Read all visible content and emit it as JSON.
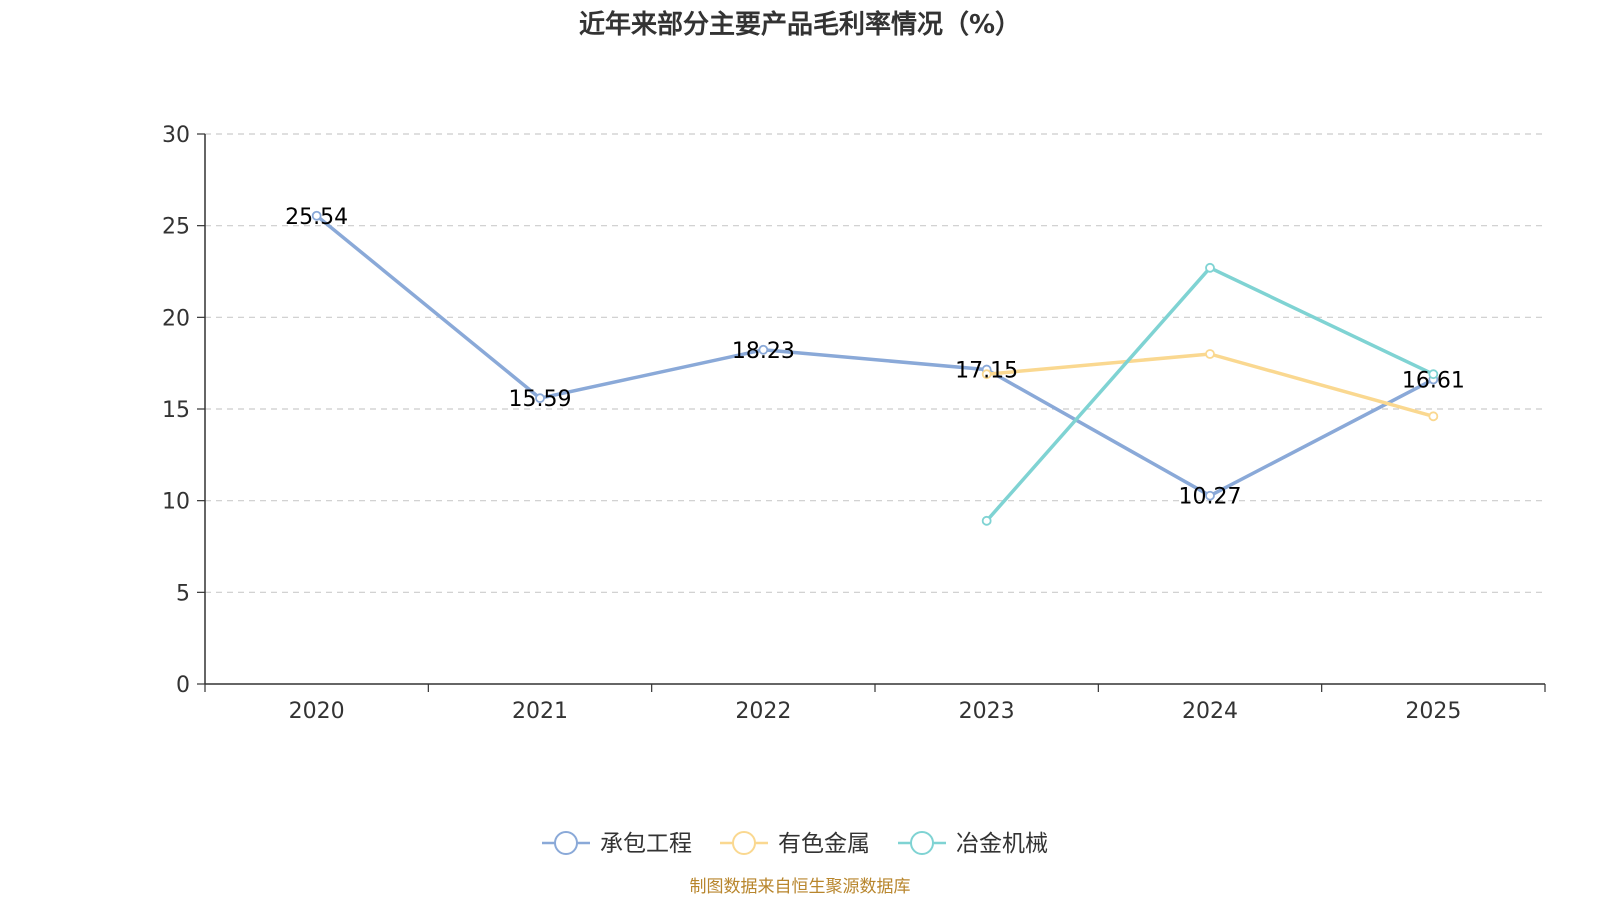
{
  "chart_data": {
    "type": "line",
    "title": "近年来部分主要产品毛利率情况（%）",
    "categories": [
      "2020",
      "2021",
      "2022",
      "2023",
      "2024",
      "2025"
    ],
    "ylim": [
      0,
      30
    ],
    "yticks": [
      0,
      5,
      10,
      15,
      20,
      25,
      30
    ],
    "grid": true,
    "legend_position": "bottom",
    "series": [
      {
        "name": "承包工程",
        "color": "#8aa9d8",
        "values": [
          25.54,
          15.59,
          18.23,
          17.15,
          10.27,
          16.61
        ],
        "labels": [
          "25.54",
          "15.59",
          "18.23",
          "17.15",
          "10.27",
          "16.61"
        ]
      },
      {
        "name": "有色金属",
        "color": "#fad890",
        "values": [
          null,
          null,
          null,
          16.9,
          18.0,
          14.6
        ],
        "labels": []
      },
      {
        "name": "冶金机械",
        "color": "#7fd3d3",
        "values": [
          null,
          null,
          null,
          8.9,
          22.7,
          16.9
        ],
        "labels": []
      }
    ],
    "source": "制图数据来自恒生聚源数据库"
  }
}
